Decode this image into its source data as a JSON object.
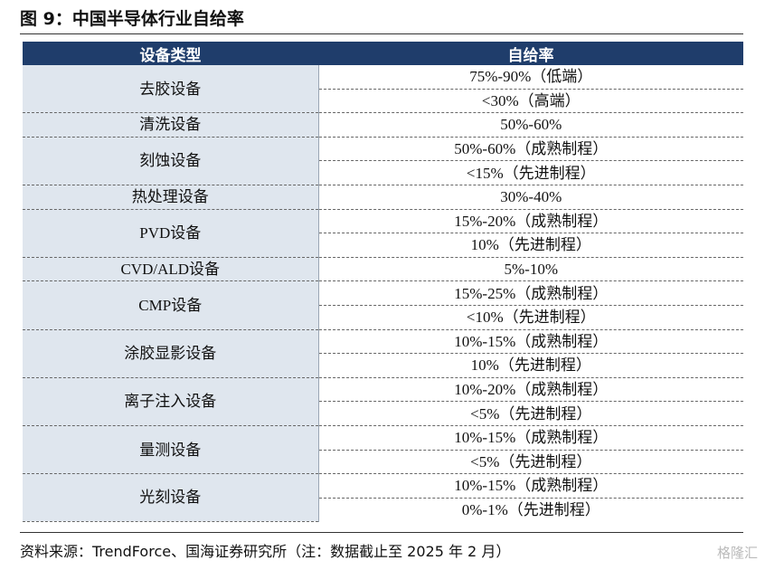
{
  "header": {
    "title": "图 9：中国半导体行业自给率"
  },
  "table": {
    "columns": [
      "设备类型",
      "自给率"
    ],
    "rows": [
      {
        "category": "去胶设备",
        "values": [
          "75%-90%（低端）",
          "<30%（高端）"
        ]
      },
      {
        "category": "清洗设备",
        "values": [
          "50%-60%"
        ]
      },
      {
        "category": "刻蚀设备",
        "values": [
          "50%-60%（成熟制程）",
          "<15%（先进制程）"
        ]
      },
      {
        "category": "热处理设备",
        "values": [
          "30%-40%"
        ]
      },
      {
        "category": "PVD设备",
        "values": [
          "15%-20%（成熟制程）",
          "10%（先进制程）"
        ]
      },
      {
        "category": "CVD/ALD设备",
        "values": [
          "5%-10%"
        ]
      },
      {
        "category": "CMP设备",
        "values": [
          "15%-25%（成熟制程）",
          "<10%（先进制程）"
        ]
      },
      {
        "category": "涂胶显影设备",
        "values": [
          "10%-15%（成熟制程）",
          "10%（先进制程）"
        ]
      },
      {
        "category": "离子注入设备",
        "values": [
          "10%-20%（成熟制程）",
          "<5%（先进制程）"
        ]
      },
      {
        "category": "量测设备",
        "values": [
          "10%-15%（成熟制程）",
          "<5%（先进制程）"
        ]
      },
      {
        "category": "光刻设备",
        "values": [
          "10%-15%（成熟制程）",
          "0%-1%（先进制程）"
        ]
      }
    ]
  },
  "footer": {
    "source": "资料来源：TrendForce、国海证券研究所（注：数据截止至 2025 年 2 月）",
    "watermark": "格隆汇"
  }
}
